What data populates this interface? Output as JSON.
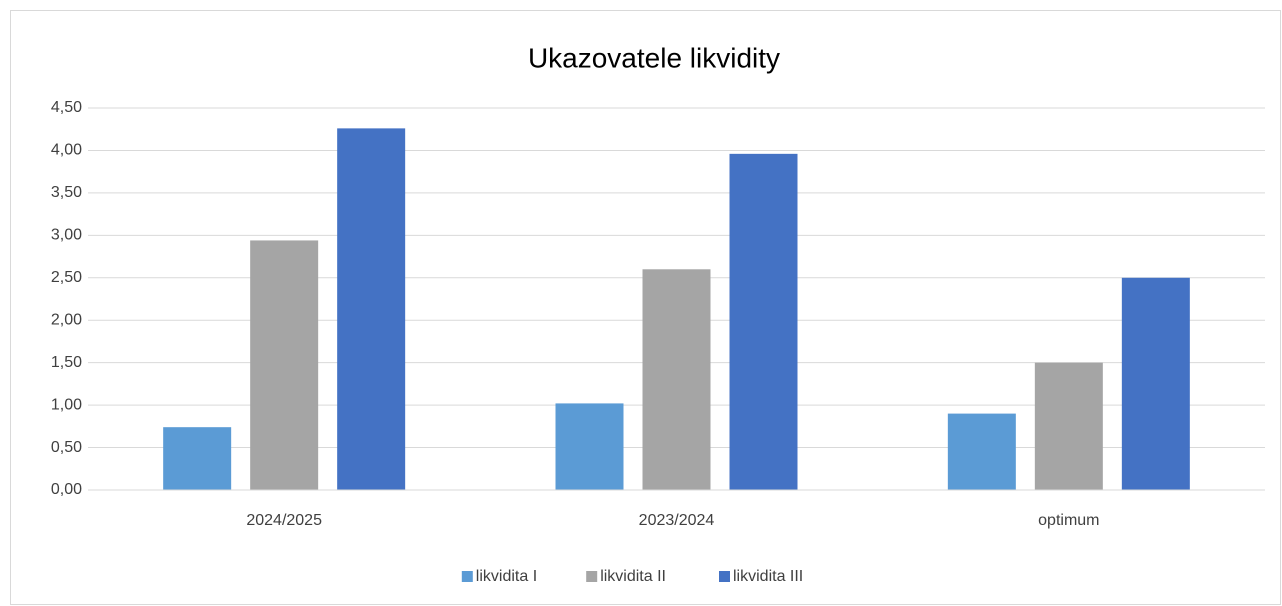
{
  "chart_data": {
    "type": "bar",
    "title": "Ukazovatele likvidity",
    "categories": [
      "2024/2025",
      "2023/2024",
      "optimum"
    ],
    "series": [
      {
        "name": "likvidita I",
        "color": "#5b9bd5",
        "values": [
          0.74,
          1.02,
          0.9
        ]
      },
      {
        "name": "likvidita II",
        "color": "#a5a5a5",
        "values": [
          2.94,
          2.6,
          1.5
        ]
      },
      {
        "name": "likvidita III",
        "color": "#4472c4",
        "values": [
          4.26,
          3.96,
          2.5
        ]
      }
    ],
    "ylim": [
      0,
      4.5
    ],
    "yticks": [
      {
        "value": 0,
        "label": "0,00"
      },
      {
        "value": 0.5,
        "label": "0,50"
      },
      {
        "value": 1,
        "label": "1,00"
      },
      {
        "value": 1.5,
        "label": "1,50"
      },
      {
        "value": 2,
        "label": "2,00"
      },
      {
        "value": 2.5,
        "label": "2,50"
      },
      {
        "value": 3,
        "label": "3,00"
      },
      {
        "value": 3.5,
        "label": "3,50"
      },
      {
        "value": 4,
        "label": "4,00"
      },
      {
        "value": 4.5,
        "label": "4,50"
      }
    ],
    "grid": true,
    "legend": "bottom"
  }
}
